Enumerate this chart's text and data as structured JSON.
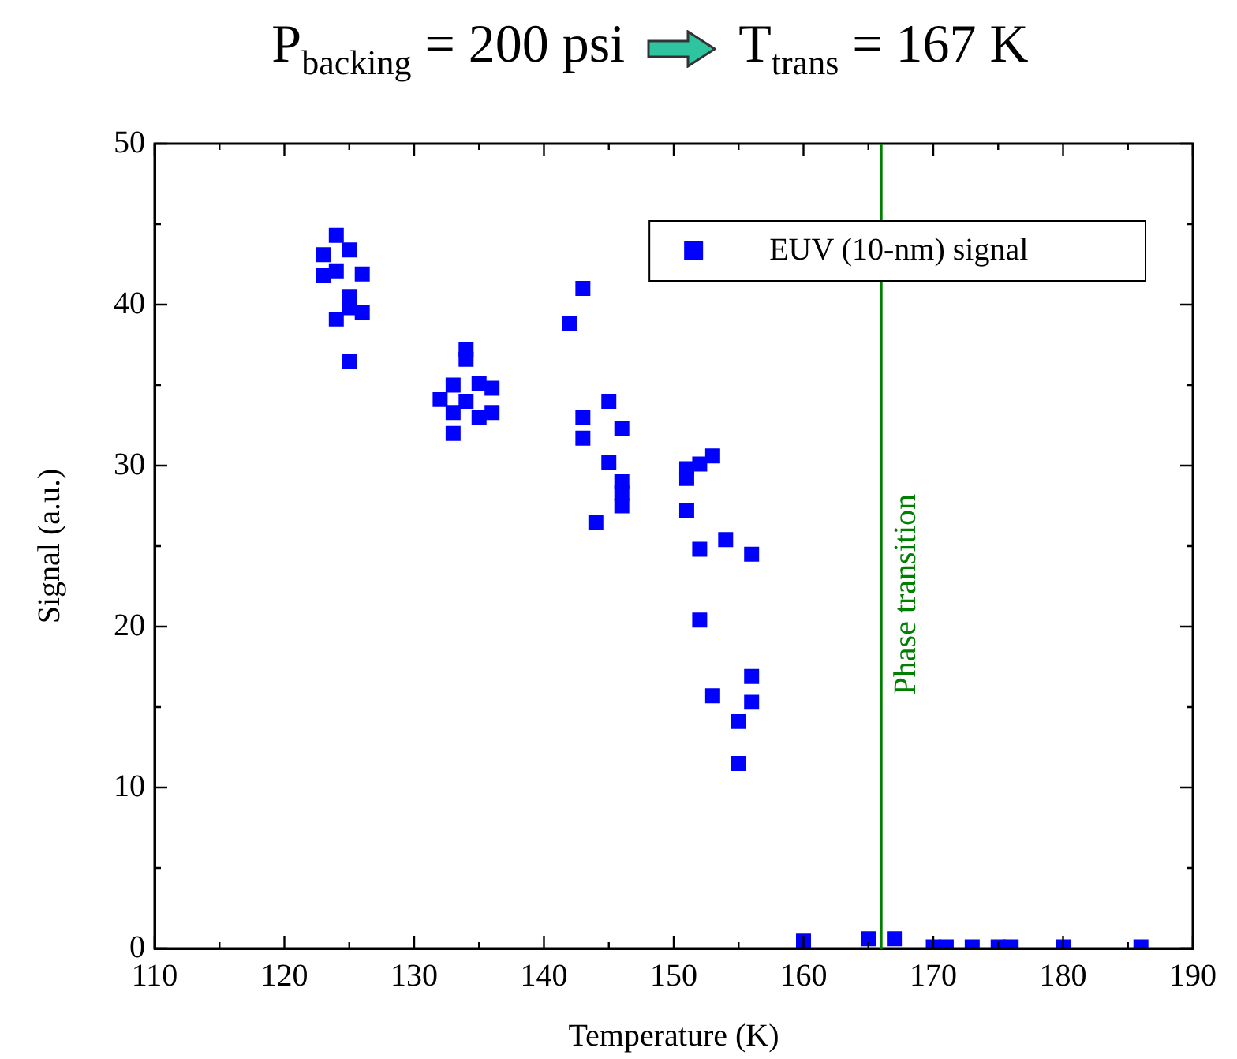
{
  "chart_data": {
    "type": "scatter",
    "title": "P$_{backing}$ = 200 psi",
    "subtitle": "T$_{trans}$ = 167 K",
    "xlabel": "Temperature (K)",
    "ylabel": "Signal (a.u.)",
    "xlim": [
      110,
      190
    ],
    "xticks": [
      110,
      120,
      130,
      140,
      150,
      160,
      170,
      180,
      190
    ],
    "ylim": [
      0,
      50
    ],
    "yticks": [
      0,
      10,
      20,
      30,
      40,
      50
    ],
    "grid": false,
    "legend": "top right",
    "marker": "square",
    "ref_lines": [
      {
        "axis": "x",
        "value": 166,
        "label": "Phase transition",
        "color": "#008000"
      }
    ],
    "series": [
      {
        "name": "EUV (10-nm) signal",
        "color": "#0000ff",
        "x": [
          124,
          125,
          123,
          124,
          123,
          126,
          125,
          125,
          124,
          126,
          125,
          132,
          133,
          133,
          133,
          134,
          134,
          134,
          135,
          135,
          136,
          136,
          142,
          143,
          143,
          143,
          144,
          145,
          145,
          146,
          146,
          146,
          146,
          151,
          151,
          152,
          153,
          151,
          152,
          154,
          156,
          152,
          153,
          156,
          156,
          155,
          155,
          160,
          165,
          167,
          170,
          171,
          173,
          175,
          176,
          180,
          186
        ],
        "values": [
          44.3,
          43.4,
          43.1,
          42.1,
          41.8,
          41.9,
          40.5,
          39.8,
          39.1,
          39.5,
          36.5,
          34.1,
          35.0,
          33.3,
          32.0,
          37.2,
          36.6,
          34.0,
          35.1,
          33.0,
          34.8,
          33.3,
          38.8,
          41.0,
          33.0,
          31.7,
          26.5,
          34.0,
          30.2,
          32.3,
          29.0,
          28.3,
          27.5,
          29.8,
          29.2,
          30.1,
          30.6,
          27.2,
          24.8,
          25.4,
          24.5,
          20.4,
          15.7,
          16.9,
          15.3,
          14.1,
          11.5,
          0.5,
          0.6,
          0.6,
          0.1,
          0.1,
          0.1,
          0.1,
          0.1,
          0.1,
          0.1
        ]
      }
    ]
  }
}
